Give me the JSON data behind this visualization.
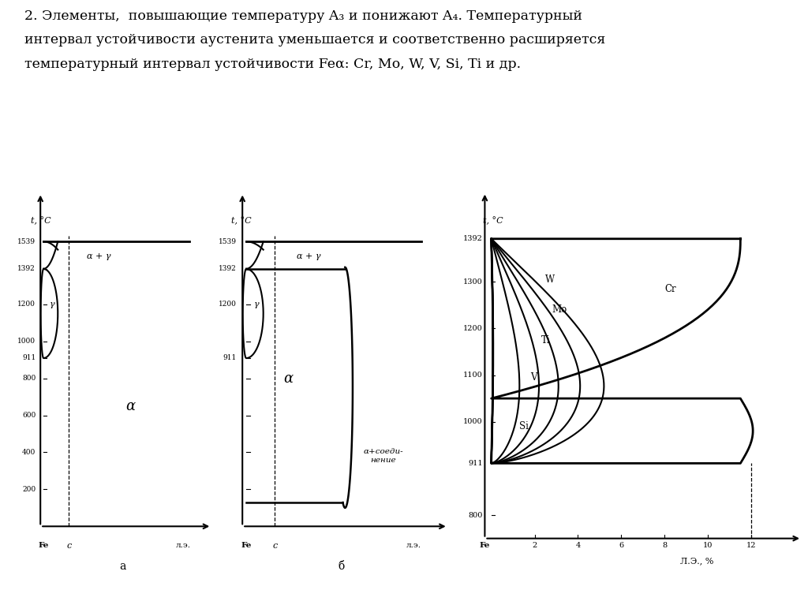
{
  "bg_color": "#ffffff",
  "title_line1": "2. Элементы,  повышающие температуру A₃ и понижают A₄. Температурный",
  "title_line2": "интервал устойчивости аустенита уменьшается и соответственно расширяется",
  "title_line3": "температурный интервал устойчивости Feα: Cr, Mo, W, V, Si, Ti и др.",
  "diag_a_yticks": [
    200,
    400,
    600,
    800,
    911,
    1000,
    1200,
    1392,
    1539
  ],
  "diag_a_ytick_labels": [
    "200",
    "400",
    "600",
    "800",
    "911",
    "1000",
    "1200",
    "1392",
    "1539"
  ],
  "diag_b_yticks": [
    911,
    1200,
    1392,
    1539
  ],
  "diag_b_ytick_labels": [
    "911",
    "1200",
    "1392",
    "1539"
  ],
  "diag_c_yticks": [
    800,
    911,
    1000,
    1100,
    1200,
    1300,
    1392
  ],
  "diag_c_xticks": [
    2,
    4,
    6,
    8,
    10,
    12
  ],
  "label_t_c": "t, °C",
  "label_fe": "Fe",
  "label_c_comp": "c",
  "label_le": "л.э.",
  "label_le_pct": "Л.Э., %",
  "label_alpha": "α",
  "label_gamma": "γ",
  "label_alpha_gamma": "α + γ",
  "label_compound": "α+соеди-\nнение",
  "label_a": "а",
  "label_b": "б",
  "elements": [
    "Cr",
    "W",
    "Mo",
    "Ti",
    "V",
    "Si"
  ],
  "element_xmax": [
    11.5,
    5.2,
    4.1,
    3.1,
    2.2,
    1.3
  ]
}
